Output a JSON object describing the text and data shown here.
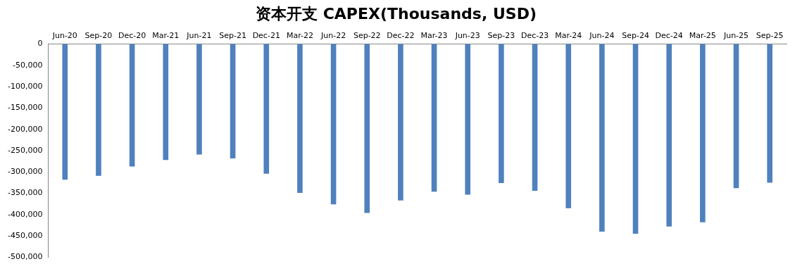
{
  "chart_data": {
    "type": "bar",
    "title": "资本开支 CAPEX(Thousands, USD)",
    "categories": [
      "Jun-20",
      "Sep-20",
      "Dec-20",
      "Mar-21",
      "Jun-21",
      "Sep-21",
      "Dec-21",
      "Mar-22",
      "Jun-22",
      "Sep-22",
      "Dec-22",
      "Mar-23",
      "Jun-23",
      "Sep-23",
      "Dec-23",
      "Mar-24",
      "Jun-24",
      "Sep-24",
      "Dec-24",
      "Mar-25",
      "Jun-25",
      "Sep-25"
    ],
    "values": [
      -318000,
      -309000,
      -287000,
      -272000,
      -259000,
      -268000,
      -304000,
      -349000,
      -376000,
      -396000,
      -367000,
      -346000,
      -353000,
      -326000,
      -344000,
      -385000,
      -440000,
      -445000,
      -428000,
      -418000,
      -338000,
      -325000
    ],
    "color": "#4f81bd",
    "ylim": [
      -500000,
      0
    ],
    "yticks": [
      {
        "value": -500000,
        "label": "-500,000"
      },
      {
        "value": -450000,
        "label": "-450,000"
      },
      {
        "value": -400000,
        "label": "-400,000"
      },
      {
        "value": -350000,
        "label": "-350,000"
      },
      {
        "value": -300000,
        "label": "-300,000"
      },
      {
        "value": -250000,
        "label": "-250,000"
      },
      {
        "value": -200000,
        "label": "-200,000"
      },
      {
        "value": -150000,
        "label": "-150,000"
      },
      {
        "value": -100000,
        "label": "-100,000"
      },
      {
        "value": -50000,
        "label": "-50,000"
      },
      0
    ],
    "grid": false,
    "legend": false
  }
}
